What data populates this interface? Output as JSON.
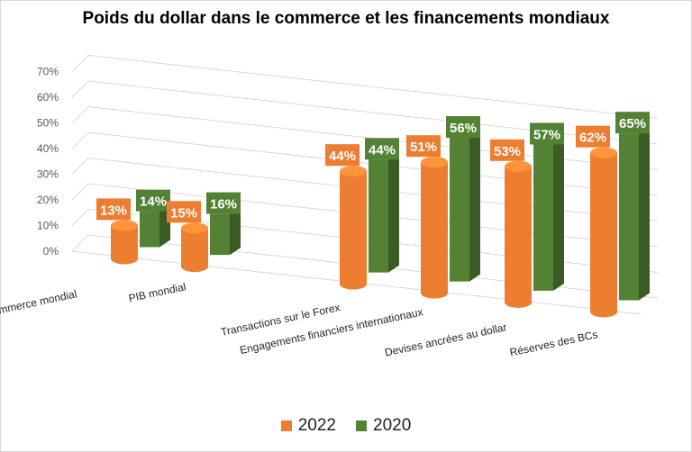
{
  "chart_data": {
    "type": "bar",
    "title": "Poids du dollar dans le commerce et les financements mondiaux",
    "categories": [
      "Commerce mondial",
      "PIB mondial",
      "Transactions sur le Forex",
      "Engagements financiers internationaux",
      "Devises ancrées au dollar",
      "Réserves des BCs"
    ],
    "series": [
      {
        "name": "2022",
        "color": "#ed7d31",
        "shape": "cylinder",
        "values": [
          13,
          15,
          44,
          51,
          53,
          62
        ],
        "data_labels": [
          "13%",
          "15%",
          "44%",
          "51%",
          "53%",
          "62%"
        ]
      },
      {
        "name": "2020",
        "color": "#548235",
        "shape": "box",
        "values": [
          14,
          16,
          44,
          56,
          57,
          65
        ],
        "data_labels": [
          "14%",
          "16%",
          "44%",
          "56%",
          "57%",
          "65%"
        ]
      }
    ],
    "y_ticks": [
      "0%",
      "10%",
      "20%",
      "30%",
      "40%",
      "50%",
      "60%",
      "70%"
    ],
    "ylim": [
      0,
      70
    ],
    "grid": true,
    "view": "3d",
    "legend_position": "bottom"
  }
}
